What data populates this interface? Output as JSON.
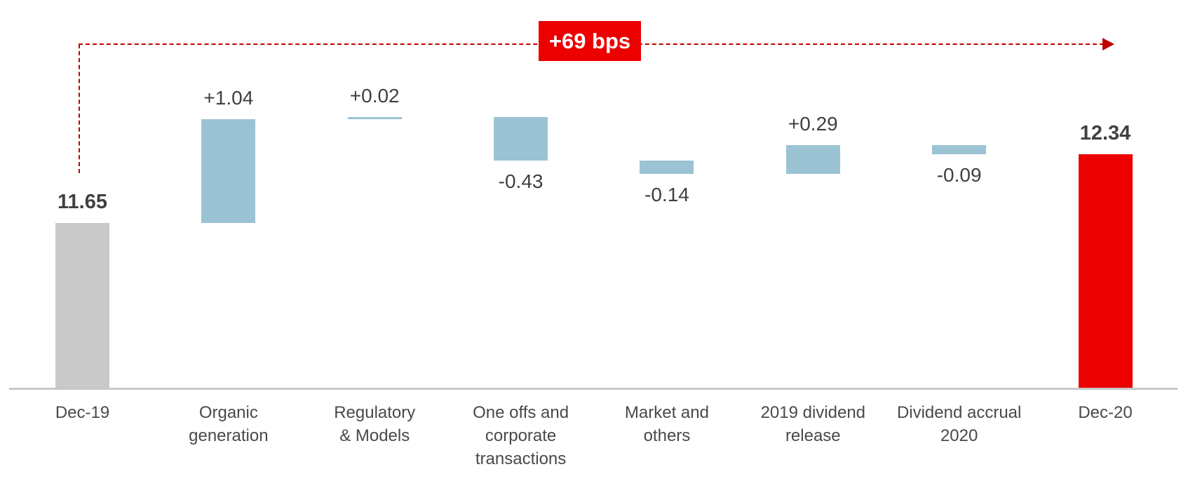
{
  "chart_data": {
    "type": "waterfall",
    "title": "",
    "total_change_label": "+69 bps",
    "legend": [],
    "grid": false,
    "y_axis": {
      "min": 10.0,
      "max": 12.9,
      "visible": false
    },
    "start": {
      "label": "Dec-19",
      "value": 11.65
    },
    "end": {
      "label": "Dec-20",
      "value": 12.34
    },
    "columns": [
      {
        "id": "dec-19",
        "label": "Dec-19",
        "label_lines": [
          "Dec-19"
        ],
        "role": "start",
        "value": 11.65,
        "value_label": "11.65",
        "value_label_position": "above",
        "emphasis": "bold",
        "color": "#c9c9c9"
      },
      {
        "id": "organic-generation",
        "label": "Organic generation",
        "label_lines": [
          "Organic",
          "generation"
        ],
        "role": "delta",
        "value": 1.04,
        "value_label": "+1.04",
        "value_label_position": "above",
        "emphasis": "normal",
        "color": "#9bc3d3"
      },
      {
        "id": "regulatory-models",
        "label": "Regulatory & Models",
        "label_lines": [
          "Regulatory",
          "& Models"
        ],
        "role": "delta",
        "value": 0.02,
        "value_label": "+0.02",
        "value_label_position": "above",
        "emphasis": "normal",
        "color": "#9bc3d3"
      },
      {
        "id": "one-offs-corporate-transactions",
        "label": "One offs and corporate transactions",
        "label_lines": [
          "One offs and",
          "corporate",
          "transactions"
        ],
        "role": "delta",
        "value": -0.43,
        "value_label": "-0.43",
        "value_label_position": "below",
        "emphasis": "normal",
        "color": "#9bc3d3"
      },
      {
        "id": "market-and-others",
        "label": "Market and others",
        "label_lines": [
          "Market and",
          "others"
        ],
        "role": "delta",
        "value": -0.14,
        "value_label": "-0.14",
        "value_label_position": "below",
        "emphasis": "normal",
        "color": "#9bc3d3"
      },
      {
        "id": "2019-dividend-release",
        "label": "2019 dividend release",
        "label_lines": [
          "2019 dividend",
          "release"
        ],
        "role": "delta",
        "value": 0.29,
        "value_label": "+0.29",
        "value_label_position": "above",
        "emphasis": "normal",
        "color": "#9bc3d3"
      },
      {
        "id": "dividend-accrual-2020",
        "label": "Dividend accrual 2020",
        "label_lines": [
          "Dividend accrual",
          "2020"
        ],
        "role": "delta",
        "value": -0.09,
        "value_label": "-0.09",
        "value_label_position": "below",
        "emphasis": "normal",
        "color": "#9bc3d3"
      },
      {
        "id": "dec-20",
        "label": "Dec-20",
        "label_lines": [
          "Dec-20"
        ],
        "role": "end",
        "value": 12.34,
        "value_label": "12.34",
        "value_label_position": "above",
        "emphasis": "bold",
        "color": "#ec0000"
      }
    ],
    "colors": {
      "increase_decrease_bars": "#9bc3d3",
      "start_bar": "#c9c9c9",
      "end_bar": "#ec0000",
      "arrow": "#c00000",
      "badge_background": "#ec0000",
      "badge_text": "#ffffff",
      "value_text": "#404042",
      "category_text": "#474a4d",
      "axis_line": "#c8c8c8"
    }
  }
}
